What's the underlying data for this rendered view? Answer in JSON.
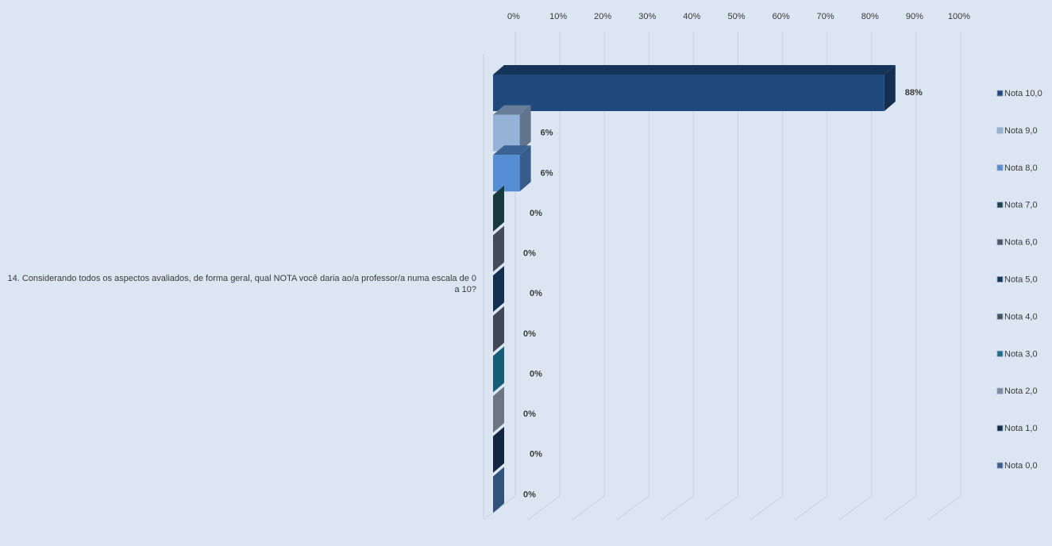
{
  "chart_data": {
    "type": "bar",
    "orientation": "horizontal",
    "style": "3d-clustered",
    "category": "14. Considerando todos os aspectos avaliados, de forma geral, qual NOTA você daria ao/a professor/a numa escala de 0 a 10?",
    "xlim": [
      0,
      100
    ],
    "x_ticks": [
      "0%",
      "10%",
      "20%",
      "30%",
      "40%",
      "50%",
      "60%",
      "70%",
      "80%",
      "90%",
      "100%"
    ],
    "legend_position": "right",
    "grid": true,
    "series": [
      {
        "name": "Nota 10,0",
        "value": 88,
        "label": "88%",
        "color": "#1f497d"
      },
      {
        "name": "Nota 9,0",
        "value": 6,
        "label": "6%",
        "color": "#95b3d7"
      },
      {
        "name": "Nota 8,0",
        "value": 6,
        "label": "6%",
        "color": "#558ed5"
      },
      {
        "name": "Nota 7,0",
        "value": 0,
        "label": "0%",
        "color": "#1d4448"
      },
      {
        "name": "Nota 6,0",
        "value": 0,
        "label": "0%",
        "color": "#4f5a66"
      },
      {
        "name": "Nota 5,0",
        "value": 0,
        "label": "0%",
        "color": "#17375e"
      },
      {
        "name": "Nota 4,0",
        "value": 0,
        "label": "0%",
        "color": "#4a5563"
      },
      {
        "name": "Nota 3,0",
        "value": 0,
        "label": "0%",
        "color": "#1a6f8c"
      },
      {
        "name": "Nota 2,0",
        "value": 0,
        "label": "0%",
        "color": "#7f8b99"
      },
      {
        "name": "Nota 1,0",
        "value": 0,
        "label": "0%",
        "color": "#172c4c"
      },
      {
        "name": "Nota 0,0",
        "value": 0,
        "label": "0%",
        "color": "#3b5f91"
      }
    ]
  }
}
